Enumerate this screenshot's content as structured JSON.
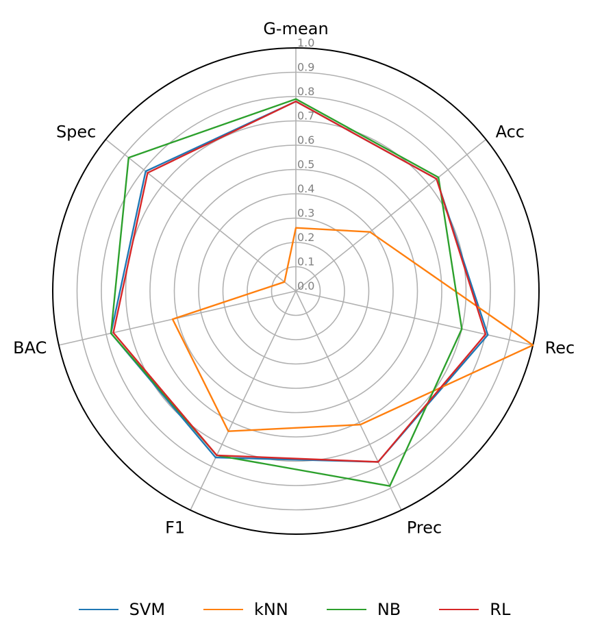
{
  "chart_data": {
    "type": "radar",
    "axes": [
      "G-mean",
      "Acc",
      "Rec",
      "Prec",
      "F1",
      "BAC",
      "Spec"
    ],
    "rlim": [
      0,
      1.0
    ],
    "r_ticks": [
      "0.0",
      "0.1",
      "0.2",
      "0.3",
      "0.4",
      "0.5",
      "0.6",
      "0.7",
      "0.8",
      "0.9",
      "1.0"
    ],
    "grid": true,
    "legend_position": "bottom",
    "series": [
      {
        "name": "SVM",
        "color": "#1f77b4",
        "values": [
          0.78,
          0.74,
          0.81,
          0.78,
          0.76,
          0.78,
          0.79
        ]
      },
      {
        "name": "kNN",
        "color": "#ff7f0e",
        "values": [
          0.26,
          0.39,
          1.0,
          0.61,
          0.64,
          0.52,
          0.06
        ]
      },
      {
        "name": "NB",
        "color": "#2ca02c",
        "values": [
          0.79,
          0.75,
          0.7,
          0.89,
          0.75,
          0.78,
          0.88
        ]
      },
      {
        "name": "RL",
        "color": "#d62728",
        "values": [
          0.78,
          0.74,
          0.8,
          0.78,
          0.75,
          0.77,
          0.78
        ]
      }
    ]
  }
}
